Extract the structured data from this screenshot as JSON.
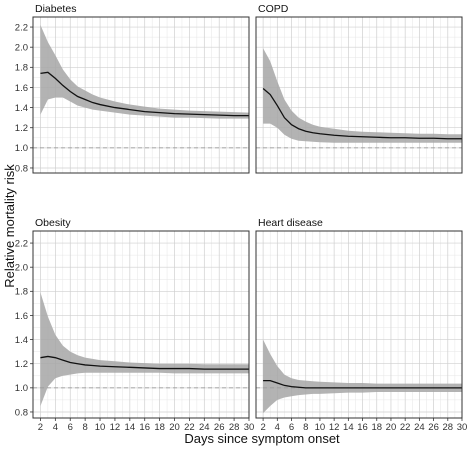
{
  "chart_data": {
    "type": "line",
    "layout": "2x2 facets, shared axes",
    "xlabel": "Days since symptom onset",
    "ylabel": "Relative mortality risk",
    "xlim": [
      1,
      30
    ],
    "ylim": [
      0.75,
      2.3
    ],
    "x_ticks": [
      2,
      4,
      6,
      8,
      10,
      12,
      14,
      16,
      18,
      20,
      22,
      24,
      26,
      28,
      30
    ],
    "y_ticks": [
      0.8,
      1.0,
      1.2,
      1.4,
      1.6,
      1.8,
      2.0,
      2.2
    ],
    "y_tick_labels": [
      "0.8",
      "1.0",
      "1.2",
      "1.4",
      "1.6",
      "1.8",
      "2.0",
      "2.2"
    ],
    "grid": true,
    "reference_line": {
      "y": 1.0,
      "style": "dashed",
      "color": "#9a9a9a"
    },
    "band_color": "#a6a6a6",
    "line_color": "#111111",
    "panels": [
      {
        "title": "Diabetes",
        "x": [
          2,
          3,
          4,
          5,
          6,
          7,
          8,
          9,
          10,
          12,
          14,
          16,
          18,
          20,
          22,
          24,
          26,
          28,
          30
        ],
        "estimate": [
          1.74,
          1.75,
          1.69,
          1.62,
          1.56,
          1.51,
          1.48,
          1.45,
          1.43,
          1.4,
          1.38,
          1.36,
          1.35,
          1.34,
          1.335,
          1.33,
          1.325,
          1.32,
          1.32
        ],
        "lower": [
          1.33,
          1.48,
          1.5,
          1.5,
          1.46,
          1.42,
          1.4,
          1.38,
          1.37,
          1.35,
          1.33,
          1.32,
          1.31,
          1.3,
          1.3,
          1.295,
          1.29,
          1.29,
          1.29
        ],
        "upper": [
          2.22,
          2.05,
          1.92,
          1.78,
          1.68,
          1.61,
          1.57,
          1.53,
          1.5,
          1.46,
          1.43,
          1.41,
          1.39,
          1.38,
          1.37,
          1.365,
          1.36,
          1.355,
          1.35
        ]
      },
      {
        "title": "COPD",
        "x": [
          2,
          3,
          4,
          5,
          6,
          7,
          8,
          9,
          10,
          12,
          14,
          16,
          18,
          20,
          22,
          24,
          26,
          28,
          30
        ],
        "estimate": [
          1.59,
          1.53,
          1.42,
          1.3,
          1.23,
          1.19,
          1.165,
          1.15,
          1.14,
          1.125,
          1.115,
          1.11,
          1.105,
          1.1,
          1.1,
          1.095,
          1.095,
          1.09,
          1.09
        ],
        "lower": [
          1.24,
          1.24,
          1.2,
          1.13,
          1.09,
          1.07,
          1.065,
          1.06,
          1.055,
          1.05,
          1.05,
          1.05,
          1.05,
          1.05,
          1.05,
          1.05,
          1.05,
          1.05,
          1.05
        ],
        "upper": [
          1.99,
          1.86,
          1.66,
          1.48,
          1.37,
          1.3,
          1.26,
          1.23,
          1.21,
          1.19,
          1.17,
          1.16,
          1.155,
          1.15,
          1.145,
          1.14,
          1.14,
          1.135,
          1.135
        ]
      },
      {
        "title": "Obesity",
        "x": [
          2,
          3,
          4,
          5,
          6,
          7,
          8,
          9,
          10,
          12,
          14,
          16,
          18,
          20,
          22,
          24,
          26,
          28,
          30
        ],
        "estimate": [
          1.25,
          1.26,
          1.25,
          1.23,
          1.21,
          1.2,
          1.19,
          1.185,
          1.18,
          1.175,
          1.17,
          1.165,
          1.16,
          1.16,
          1.16,
          1.155,
          1.155,
          1.155,
          1.155
        ],
        "lower": [
          0.85,
          1.01,
          1.08,
          1.1,
          1.11,
          1.12,
          1.125,
          1.125,
          1.125,
          1.125,
          1.125,
          1.125,
          1.125,
          1.12,
          1.12,
          1.12,
          1.12,
          1.12,
          1.12
        ],
        "upper": [
          1.79,
          1.59,
          1.44,
          1.35,
          1.3,
          1.27,
          1.25,
          1.24,
          1.23,
          1.22,
          1.21,
          1.205,
          1.2,
          1.2,
          1.2,
          1.195,
          1.195,
          1.195,
          1.195
        ]
      },
      {
        "title": "Heart disease",
        "x": [
          2,
          3,
          4,
          5,
          6,
          7,
          8,
          9,
          10,
          12,
          14,
          16,
          18,
          20,
          22,
          24,
          26,
          28,
          30
        ],
        "estimate": [
          1.06,
          1.06,
          1.04,
          1.02,
          1.01,
          1.005,
          1.0,
          1.0,
          1.0,
          1.0,
          1.0,
          1.0,
          1.0,
          1.0,
          1.0,
          1.0,
          1.0,
          1.0,
          1.0
        ],
        "lower": [
          0.79,
          0.85,
          0.9,
          0.92,
          0.93,
          0.94,
          0.945,
          0.95,
          0.95,
          0.955,
          0.96,
          0.96,
          0.965,
          0.965,
          0.965,
          0.965,
          0.965,
          0.965,
          0.965
        ],
        "upper": [
          1.4,
          1.28,
          1.18,
          1.11,
          1.08,
          1.065,
          1.06,
          1.055,
          1.05,
          1.045,
          1.04,
          1.04,
          1.035,
          1.035,
          1.035,
          1.035,
          1.035,
          1.035,
          1.035
        ]
      }
    ]
  }
}
